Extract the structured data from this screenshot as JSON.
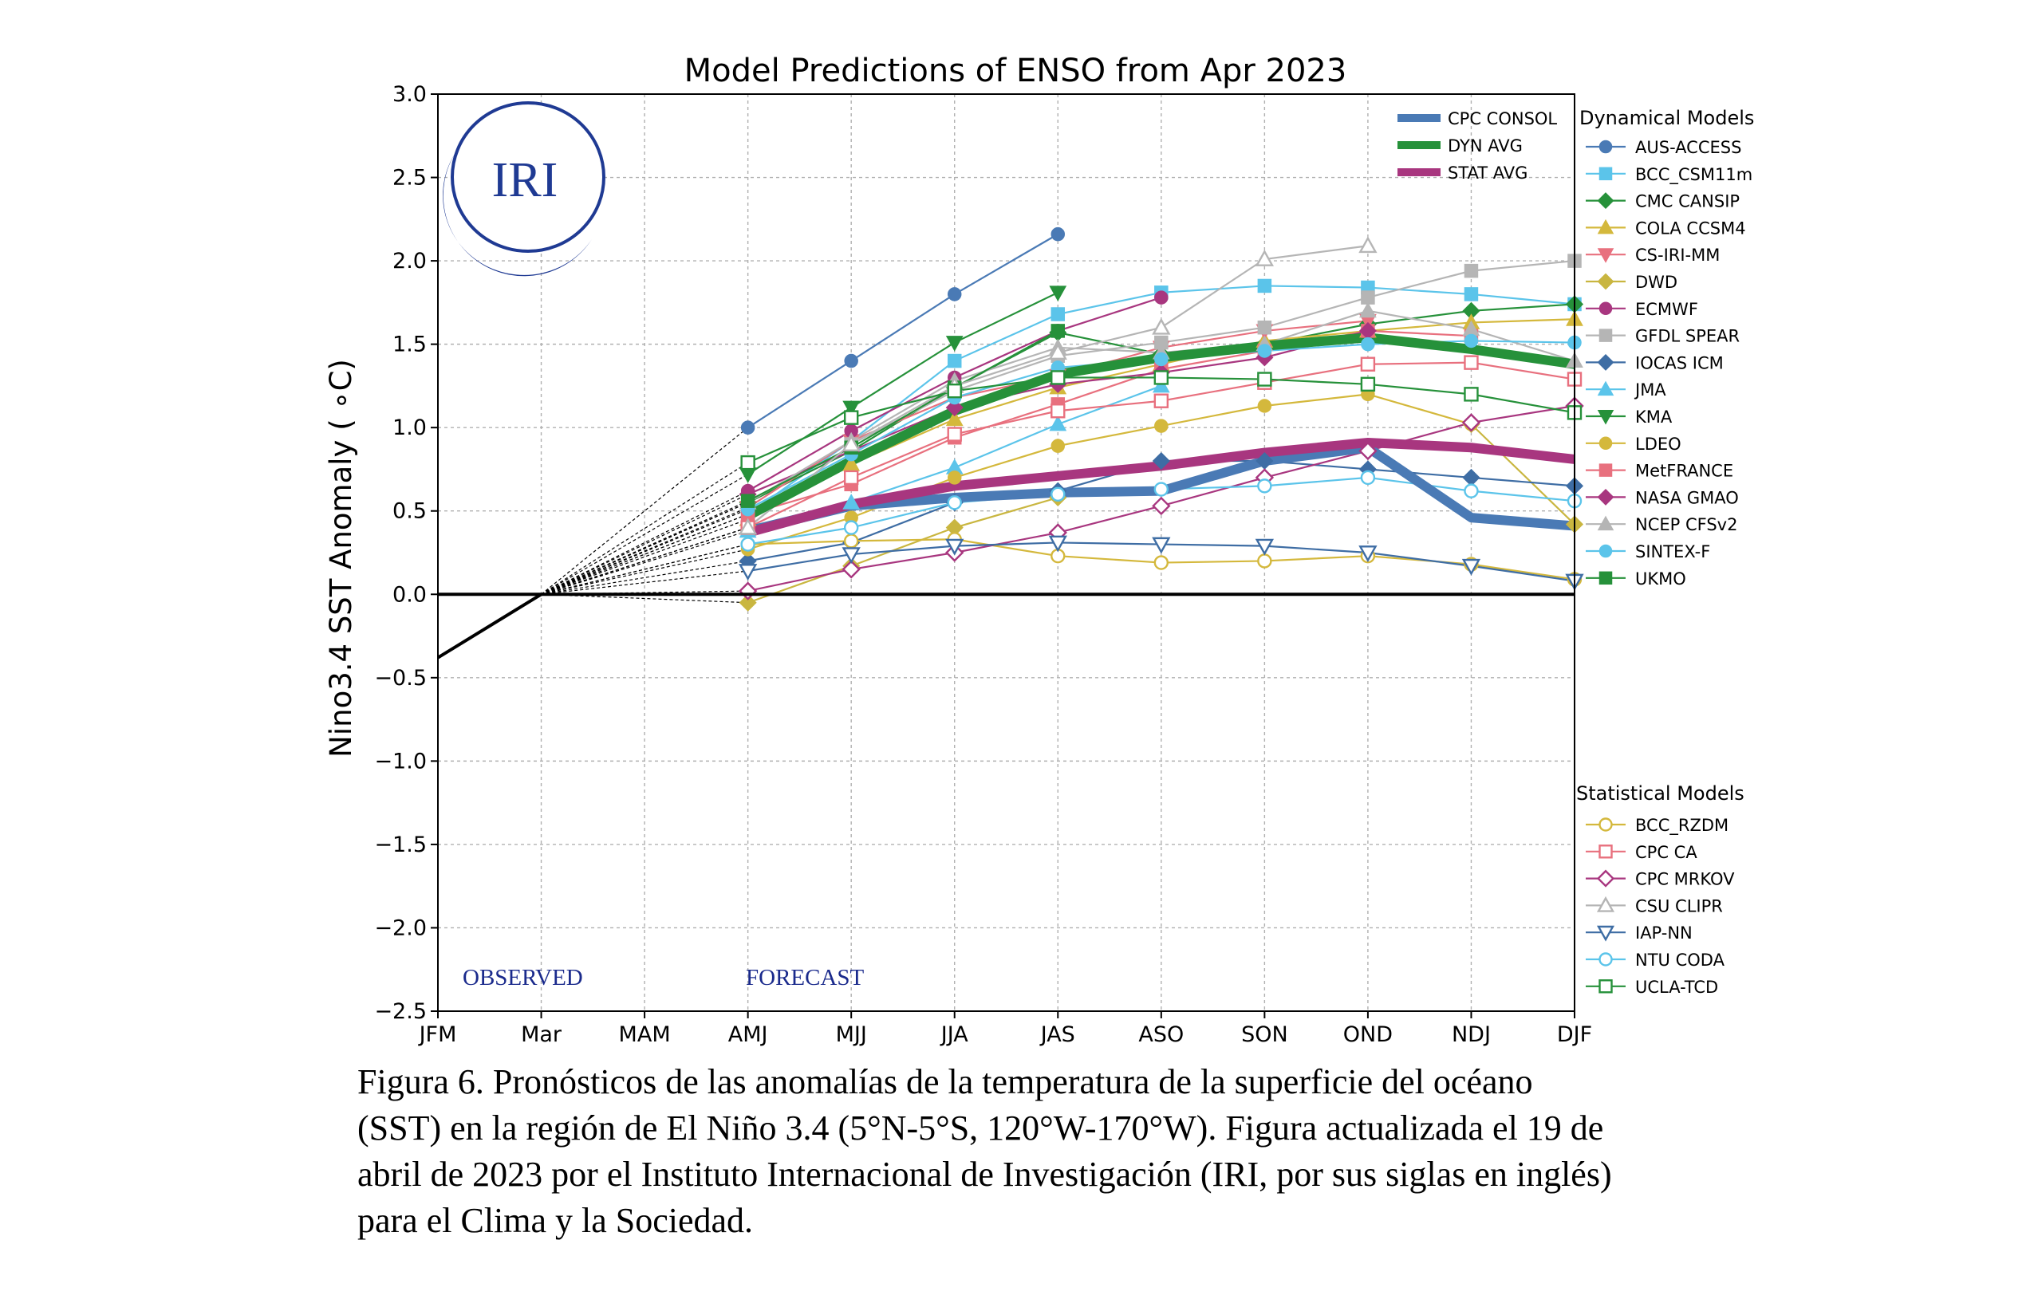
{
  "chart_data": {
    "type": "line",
    "title": "Model Predictions of ENSO from Apr 2023",
    "ylabel": "Nino3.4 SST Anomaly ( ∘C)",
    "xlabel": "",
    "categories": [
      "JFM",
      "Mar",
      "MAM",
      "AMJ",
      "MJJ",
      "JJA",
      "JAS",
      "ASO",
      "SON",
      "OND",
      "NDJ",
      "DJF"
    ],
    "y_ticks": [
      "3.0",
      "2.5",
      "2.0",
      "1.5",
      "1.0",
      "0.5",
      "0.0",
      "−0.5",
      "−1.0",
      "−1.5",
      "−2.0",
      "−2.5"
    ],
    "ylim": [
      -2.5,
      3.0
    ],
    "grid": true,
    "logo_text": "IRI",
    "region_labels": {
      "observed": "OBSERVED",
      "forecast": "FORECAST"
    },
    "legend_top": [
      {
        "name": "CPC CONSOL",
        "color": "#4a7ab5"
      },
      {
        "name": "DYN AVG",
        "color": "#26913a"
      },
      {
        "name": "STAT AVG",
        "color": "#a8367f"
      }
    ],
    "legend_dynamical_title": "Dynamical Models",
    "legend_statistical_title": "Statistical Models",
    "observed": [
      {
        "x": "JFM",
        "y": -0.38
      },
      {
        "x": "Mar",
        "y": 0.0
      }
    ],
    "averages": [
      {
        "name": "CPC CONSOL",
        "color": "#4a7ab5",
        "values": [
          null,
          null,
          null,
          0.38,
          0.53,
          0.58,
          0.61,
          0.62,
          0.8,
          0.88,
          0.46,
          0.41
        ]
      },
      {
        "name": "DYN AVG",
        "color": "#26913a",
        "values": [
          null,
          null,
          null,
          0.47,
          0.8,
          1.1,
          1.32,
          1.42,
          1.49,
          1.54,
          1.47,
          1.38
        ]
      },
      {
        "name": "STAT AVG",
        "color": "#a8367f",
        "values": [
          null,
          null,
          null,
          0.37,
          0.54,
          0.65,
          0.71,
          0.77,
          0.85,
          0.91,
          0.88,
          0.81
        ]
      }
    ],
    "dynamical_models": [
      {
        "name": "AUS-ACCESS",
        "color": "#4a7ab5",
        "marker": "circle",
        "values": [
          null,
          null,
          null,
          1.0,
          1.4,
          1.8,
          2.16,
          null,
          null,
          null,
          null,
          null
        ]
      },
      {
        "name": "BCC_CSM11m",
        "color": "#5bc4ea",
        "marker": "square",
        "values": [
          null,
          null,
          null,
          0.48,
          0.92,
          1.4,
          1.68,
          1.81,
          1.85,
          1.84,
          1.8,
          1.74
        ]
      },
      {
        "name": "CMC CANSIP",
        "color": "#26913a",
        "marker": "diamond",
        "values": [
          null,
          null,
          null,
          0.55,
          0.86,
          1.24,
          1.57,
          1.44,
          1.5,
          1.62,
          1.7,
          1.74
        ]
      },
      {
        "name": "COLA CCSM4",
        "color": "#d4b83c",
        "marker": "triangle-up",
        "values": [
          null,
          null,
          null,
          0.45,
          0.78,
          1.05,
          1.24,
          1.38,
          1.52,
          1.58,
          1.63,
          1.65
        ]
      },
      {
        "name": "CS-IRI-MM",
        "color": "#e8707e",
        "marker": "triangle-down",
        "values": [
          null,
          null,
          null,
          0.52,
          0.92,
          1.18,
          1.31,
          1.48,
          1.58,
          1.64,
          null,
          null
        ]
      },
      {
        "name": "DWD",
        "color": "#c9b640",
        "marker": "diamond",
        "values": [
          null,
          null,
          null,
          -0.05,
          0.17,
          0.4,
          0.58,
          null,
          null,
          null,
          1.02,
          0.42
        ]
      },
      {
        "name": "ECMWF",
        "color": "#a8367f",
        "marker": "circle",
        "values": [
          null,
          null,
          null,
          0.62,
          0.98,
          1.3,
          1.58,
          1.78,
          null,
          null,
          null,
          null
        ]
      },
      {
        "name": "GFDL SPEAR",
        "color": "#b5b5b5",
        "marker": "square",
        "values": [
          null,
          null,
          null,
          0.4,
          0.9,
          1.22,
          1.43,
          1.51,
          1.6,
          1.78,
          1.94,
          2.0
        ]
      },
      {
        "name": "IOCAS ICM",
        "color": "#3e6da4",
        "marker": "diamond",
        "values": [
          null,
          null,
          null,
          0.2,
          0.31,
          0.55,
          0.62,
          0.8,
          0.8,
          0.75,
          0.7,
          0.65
        ]
      },
      {
        "name": "JMA",
        "color": "#5bc4ea",
        "marker": "triangle-up",
        "values": [
          null,
          null,
          null,
          0.38,
          0.55,
          0.76,
          1.02,
          1.25,
          null,
          null,
          null,
          null
        ]
      },
      {
        "name": "KMA",
        "color": "#26913a",
        "marker": "triangle-down",
        "values": [
          null,
          null,
          null,
          0.72,
          1.12,
          1.51,
          1.81,
          null,
          null,
          null,
          null,
          null
        ]
      },
      {
        "name": "LDEO",
        "color": "#d4b83c",
        "marker": "circle",
        "values": [
          null,
          null,
          null,
          0.27,
          0.46,
          0.7,
          0.89,
          1.01,
          1.13,
          1.2,
          1.02,
          null
        ]
      },
      {
        "name": "MetFRANCE",
        "color": "#e8707e",
        "marker": "square",
        "values": [
          null,
          null,
          null,
          0.48,
          0.66,
          0.94,
          1.14,
          1.35,
          1.46,
          1.58,
          1.55,
          null
        ]
      },
      {
        "name": "NASA GMAO",
        "color": "#a8367f",
        "marker": "diamond",
        "values": [
          null,
          null,
          null,
          0.6,
          0.86,
          1.12,
          1.26,
          1.33,
          1.42,
          1.58,
          null,
          null
        ]
      },
      {
        "name": "NCEP CFSv2",
        "color": "#b5b5b5",
        "marker": "triangle-up",
        "values": [
          null,
          null,
          null,
          0.55,
          0.92,
          1.28,
          1.48,
          1.45,
          1.5,
          1.7,
          1.59,
          1.4
        ]
      },
      {
        "name": "SINTEX-F",
        "color": "#5bc4ea",
        "marker": "circle",
        "values": [
          null,
          null,
          null,
          0.51,
          0.84,
          1.18,
          1.36,
          1.41,
          1.46,
          1.5,
          1.52,
          1.51
        ]
      },
      {
        "name": "UKMO",
        "color": "#26913a",
        "marker": "square",
        "values": [
          null,
          null,
          null,
          0.56,
          0.88,
          1.24,
          1.58,
          null,
          null,
          null,
          null,
          null
        ]
      }
    ],
    "statistical_models": [
      {
        "name": "BCC_RZDM",
        "color": "#d4b83c",
        "marker": "circle-open",
        "values": [
          null,
          null,
          null,
          0.3,
          0.32,
          0.33,
          0.23,
          0.19,
          0.2,
          0.23,
          0.18,
          0.09
        ]
      },
      {
        "name": "CPC CA",
        "color": "#e8707e",
        "marker": "square-open",
        "values": [
          null,
          null,
          null,
          0.4,
          0.7,
          0.96,
          1.1,
          1.16,
          1.27,
          1.38,
          1.39,
          1.29
        ]
      },
      {
        "name": "CPC MRKOV",
        "color": "#a8367f",
        "marker": "diamond-open",
        "values": [
          null,
          null,
          null,
          0.02,
          0.15,
          0.25,
          0.37,
          0.53,
          0.7,
          0.86,
          1.03,
          1.13
        ]
      },
      {
        "name": "CSU CLIPR",
        "color": "#b5b5b5",
        "marker": "triangle-up-open",
        "values": [
          null,
          null,
          null,
          0.4,
          0.9,
          1.25,
          1.45,
          1.6,
          2.01,
          2.09,
          null,
          null
        ]
      },
      {
        "name": "IAP-NN",
        "color": "#3e6da4",
        "marker": "triangle-down-open",
        "values": [
          null,
          null,
          null,
          0.14,
          0.24,
          0.29,
          0.31,
          0.3,
          0.29,
          0.25,
          0.17,
          0.08
        ]
      },
      {
        "name": "NTU CODA",
        "color": "#5bc4ea",
        "marker": "circle-open",
        "values": [
          null,
          null,
          null,
          0.3,
          0.4,
          0.55,
          0.6,
          0.63,
          0.65,
          0.7,
          0.62,
          0.56
        ]
      },
      {
        "name": "UCLA-TCD",
        "color": "#26913a",
        "marker": "square-open",
        "values": [
          null,
          null,
          null,
          0.79,
          1.06,
          1.22,
          1.3,
          1.3,
          1.29,
          1.26,
          1.2,
          1.09
        ]
      }
    ]
  },
  "caption": {
    "lines": [
      "Figura 6. Pronósticos de las anomalías de la temperatura de la superficie del océano",
      "(SST) en la región de El Niño 3.4 (5°N-5°S, 120°W-170°W). Figura actualizada el 19 de",
      "abril de 2023 por el Instituto Internacional de Investigación (IRI, por sus siglas en inglés)",
      "para el Clima y la Sociedad."
    ]
  }
}
